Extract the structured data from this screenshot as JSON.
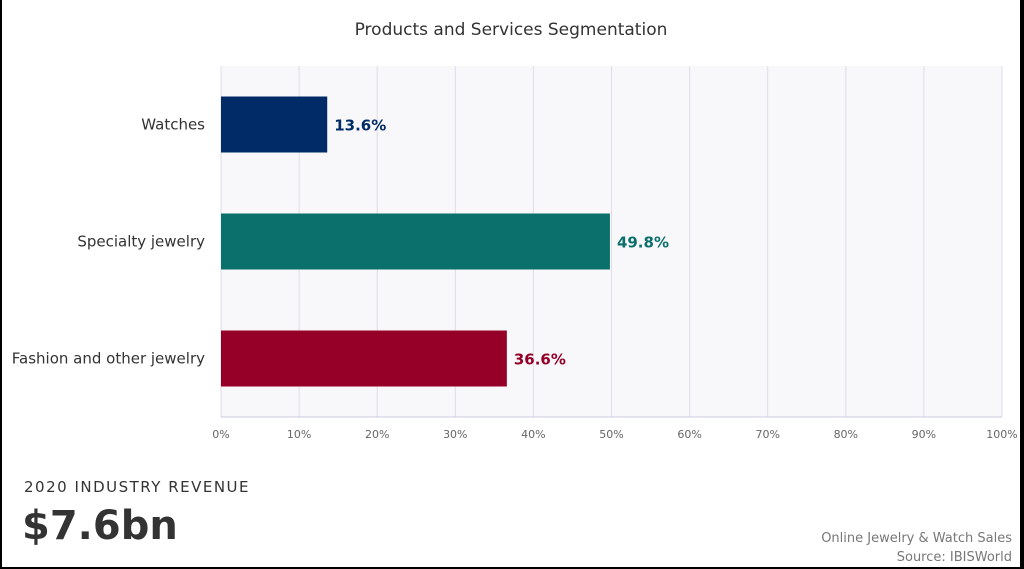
{
  "chart_data": {
    "type": "bar",
    "orientation": "horizontal",
    "title": "Products and Services Segmentation",
    "categories": [
      "Watches",
      "Specialty jewelry",
      "Fashion and other jewelry"
    ],
    "values": [
      13.6,
      49.8,
      36.6
    ],
    "value_labels": [
      "13.6%",
      "49.8%",
      "36.6%"
    ],
    "colors": [
      "#002b66",
      "#0b6f6c",
      "#960028"
    ],
    "xlim": [
      0,
      100
    ],
    "x_ticks": [
      "0%",
      "10%",
      "20%",
      "30%",
      "40%",
      "50%",
      "60%",
      "70%",
      "80%",
      "90%",
      "100%"
    ],
    "grid": true
  },
  "revenue": {
    "caption": "2020 INDUSTRY REVENUE",
    "value": "$7.6bn"
  },
  "footer": {
    "industry": "Online Jewelry & Watch Sales",
    "source": "Source: IBISWorld"
  }
}
